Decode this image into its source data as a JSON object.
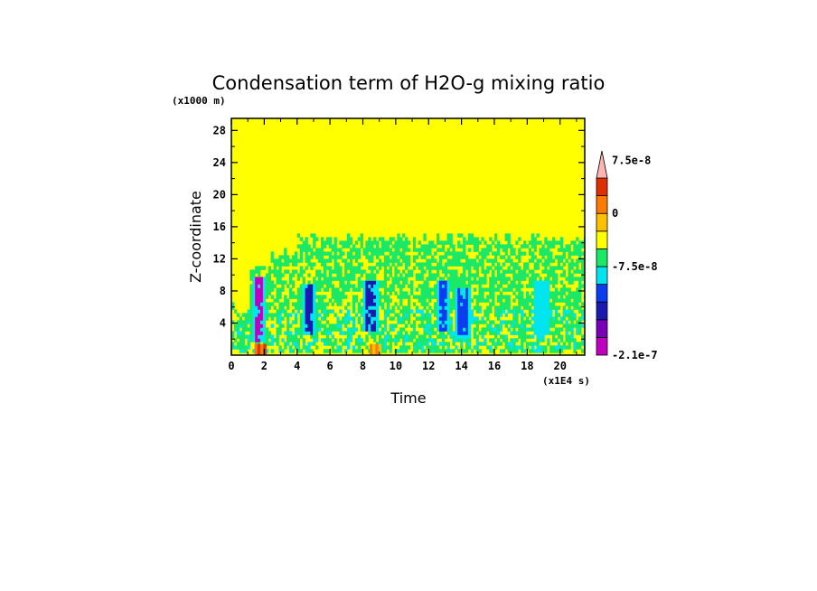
{
  "chart_data": {
    "type": "heatmap",
    "title": "Condensation term of H2O-g mixing ratio",
    "xlabel": "Time",
    "ylabel": "Z-coordinate",
    "x_unit": "(x1E4 s)",
    "y_unit": "(x1000 m)",
    "xlim": [
      0,
      21.5
    ],
    "ylim": [
      0,
      29.5
    ],
    "x_ticks": [
      0,
      2,
      4,
      6,
      8,
      10,
      12,
      14,
      16,
      18,
      20
    ],
    "y_ticks": [
      4,
      8,
      12,
      16,
      20,
      24,
      28
    ],
    "colorbar": {
      "levels": [
        "-2.1e-7",
        "-1.8e-7",
        "-1.5e-7",
        "-1.2e-7",
        "-9.0e-8",
        "-7.5e-8",
        "-5.0e-8",
        "-2.5e-8",
        "0",
        "2.5e-8",
        "5.0e-8",
        "7.5e-8"
      ],
      "colors": [
        "#c000c0",
        "#7a00b8",
        "#1a1ab0",
        "#0a3cf0",
        "#00e5f0",
        "#1ae866",
        "#ffff00",
        "#ffc000",
        "#ff7a00",
        "#e03000",
        "#ffb6b0"
      ],
      "labels": [
        "7.5e-8",
        "0",
        "-7.5e-8",
        "-2.1e-7"
      ],
      "extend": "max"
    },
    "features": {
      "background_value": 0,
      "active_layer_top_km": 15,
      "strong_cores": [
        {
          "t": 1.6,
          "z_bottom": 1.5,
          "z_top": 9.5,
          "min": "-2.1e-7"
        },
        {
          "t": 4.6,
          "z_bottom": 2.5,
          "z_top": 8.5,
          "min": "-1.2e-7"
        },
        {
          "t": 8.4,
          "z_bottom": 3,
          "z_top": 9,
          "min": "-1.2e-7"
        },
        {
          "t": 12.8,
          "z_bottom": 3,
          "z_top": 9,
          "min": "-9.0e-8"
        },
        {
          "t": 14.0,
          "z_bottom": 2,
          "z_top": 8,
          "min": "-9.0e-8"
        },
        {
          "t": 18.8,
          "z_bottom": 2.5,
          "z_top": 9,
          "min": "-7.5e-8"
        }
      ],
      "positive_near_surface": [
        {
          "t": 1.7,
          "max": "7.5e-8"
        },
        {
          "t": 8.7,
          "max": "2.5e-8"
        }
      ]
    }
  }
}
